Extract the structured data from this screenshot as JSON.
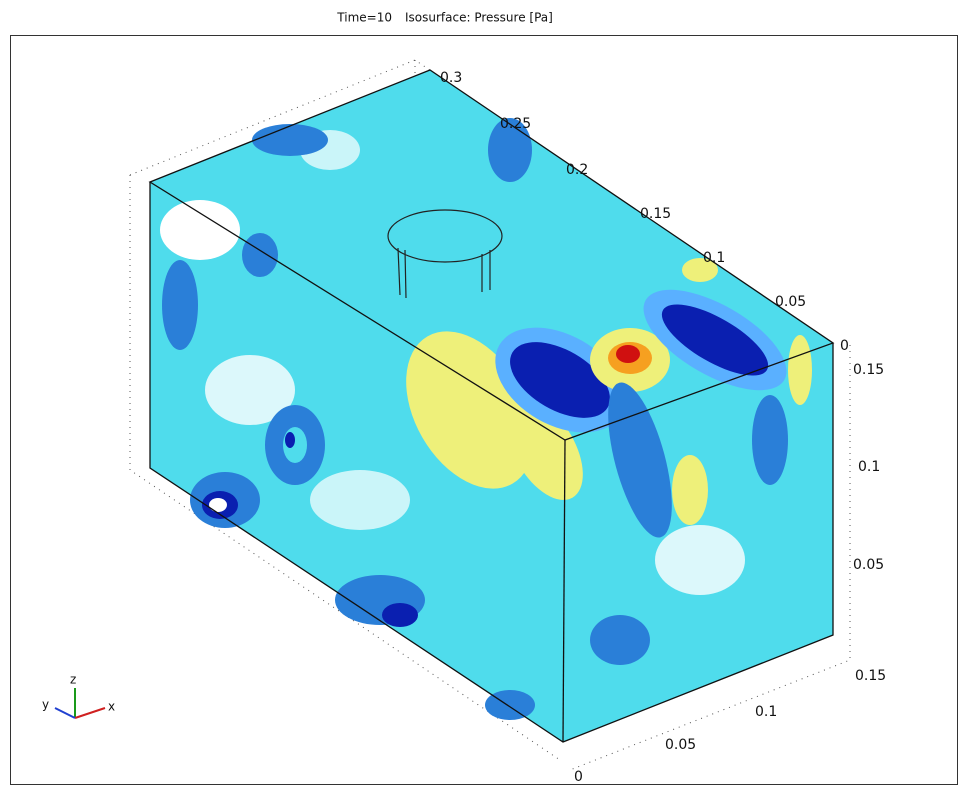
{
  "title": {
    "time": "Time=10",
    "plot": "Isosurface: Pressure [Pa]"
  },
  "axes": {
    "y_ticks": [
      "0.3",
      "0.25",
      "0.2",
      "0.15",
      "0.1",
      "0.05",
      "0"
    ],
    "z_ticks": [
      "0.15",
      "0.1",
      "0.05"
    ],
    "x_ticks": [
      "0.15",
      "0.1",
      "0.05",
      "0"
    ]
  },
  "triad": {
    "x": "x",
    "y": "y",
    "z": "z"
  }
}
